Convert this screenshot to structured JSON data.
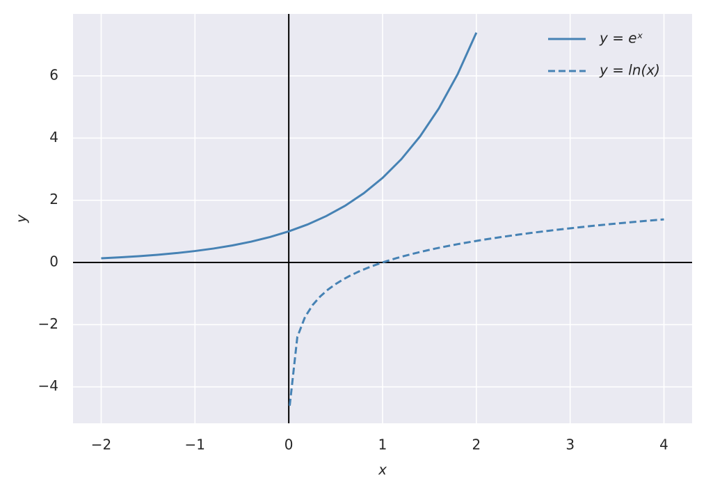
{
  "chart_data": {
    "type": "line",
    "x_label": "x",
    "y_label": "y",
    "series": [
      {
        "name": "y = eˣ",
        "color": "#4682b4",
        "linestyle": "solid",
        "x": [
          -2,
          -1.8,
          -1.6,
          -1.4,
          -1.2,
          -1,
          -0.8,
          -0.6,
          -0.4,
          -0.2,
          0,
          0.2,
          0.4,
          0.6,
          0.8,
          1,
          1.2,
          1.4,
          1.6,
          1.8,
          2
        ],
        "values": [
          0.135,
          0.165,
          0.202,
          0.247,
          0.301,
          0.368,
          0.449,
          0.549,
          0.67,
          0.819,
          1,
          1.221,
          1.492,
          1.822,
          2.226,
          2.718,
          3.32,
          4.055,
          4.953,
          6.05,
          7.389
        ]
      },
      {
        "name": "y = ln(x)",
        "color": "#4682b4",
        "linestyle": "dashed",
        "x": [
          0.01,
          0.0914,
          0.1729,
          0.2543,
          0.3357,
          0.4171,
          0.4986,
          0.58,
          0.6614,
          0.7429,
          0.8243,
          0.9057,
          0.9871,
          1.0686,
          1.15,
          1.2314,
          1.3129,
          1.3943,
          1.4757,
          1.5571,
          1.6386,
          1.72,
          1.8014,
          1.8829,
          1.9643,
          2.0457,
          2.1271,
          2.2086,
          2.29,
          2.3714,
          2.4529,
          2.5343,
          2.6157,
          2.6971,
          2.7786,
          2.86,
          2.9414,
          3.0229,
          3.1043,
          3.1857,
          3.2671,
          3.3486,
          3.43,
          3.5114,
          3.5929,
          3.6743,
          3.7557,
          3.8371,
          3.9186,
          4
        ],
        "values": [
          -4.605,
          -2.392,
          -1.755,
          -1.369,
          -1.092,
          -0.874,
          -0.696,
          -0.545,
          -0.413,
          -0.297,
          -0.193,
          -0.099,
          -0.013,
          0.066,
          0.14,
          0.208,
          0.272,
          0.332,
          0.389,
          0.443,
          0.494,
          0.542,
          0.589,
          0.633,
          0.675,
          0.716,
          0.755,
          0.792,
          0.829,
          0.863,
          0.897,
          0.93,
          0.962,
          0.992,
          1.022,
          1.051,
          1.079,
          1.106,
          1.133,
          1.159,
          1.184,
          1.208,
          1.233,
          1.256,
          1.279,
          1.301,
          1.323,
          1.345,
          1.366,
          1.386
        ]
      }
    ],
    "xlim": [
      -2.3,
      4.3
    ],
    "ylim": [
      -5.17,
      7.99
    ],
    "xticks": [
      {
        "value": -2,
        "label": "−2"
      },
      {
        "value": -1,
        "label": "−1"
      },
      0,
      1,
      2,
      3,
      4
    ],
    "yticks": [
      {
        "value": -4,
        "label": "−4"
      },
      {
        "value": -2,
        "label": "−2"
      },
      0,
      2,
      4,
      6
    ],
    "reference_lines": {
      "x": 0,
      "y": 0
    },
    "grid": true,
    "legend": "upper right"
  }
}
